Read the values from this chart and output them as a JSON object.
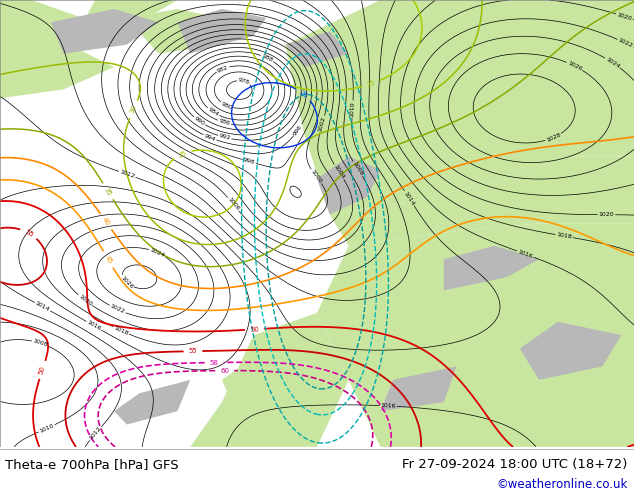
{
  "title_left": "Theta-e 700hPa [hPa] GFS",
  "title_right": "Fr 27-09-2024 18:00 UTC (18+72)",
  "copyright": "©weatheronline.co.uk",
  "copyright_color": "#0000cc",
  "bg_color": "#ffffff",
  "ocean_color": "#d8d8d8",
  "land_green_color": "#c8e6a0",
  "land_gray_color": "#b8b8b8",
  "bottom_text_color": "#000000",
  "fig_width": 6.34,
  "fig_height": 4.9
}
